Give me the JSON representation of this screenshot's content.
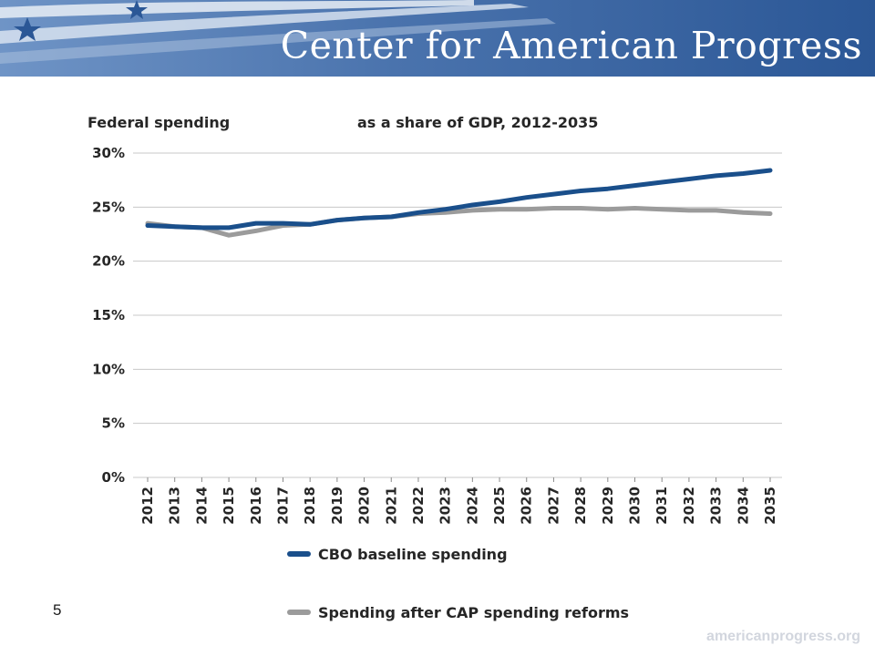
{
  "header": {
    "org_name": "Center for American Progress",
    "colors": {
      "banner_dark": "#2b5796",
      "banner_light": "#6f94c6",
      "stripe": "#e9eef6"
    }
  },
  "slide": {
    "number": "5",
    "url": "americanprogress.org"
  },
  "chart_data": {
    "type": "line",
    "title_left": "Federal spending",
    "title_right": "as a share of GDP, 2012-2035",
    "x": [
      "2012",
      "2013",
      "2014",
      "2015",
      "2016",
      "2017",
      "2018",
      "2019",
      "2020",
      "2021",
      "2022",
      "2023",
      "2024",
      "2025",
      "2026",
      "2027",
      "2028",
      "2029",
      "2030",
      "2031",
      "2032",
      "2033",
      "2034",
      "2035"
    ],
    "y_ticks": [
      "0%",
      "5%",
      "10%",
      "15%",
      "20%",
      "25%",
      "30%"
    ],
    "ylim": [
      0,
      30
    ],
    "grid": true,
    "legend_position": "bottom",
    "series": [
      {
        "name": "CBO baseline spending",
        "color": "#1a4f8b",
        "values": [
          23.3,
          23.2,
          23.1,
          23.1,
          23.5,
          23.5,
          23.4,
          23.8,
          24.0,
          24.1,
          24.5,
          24.8,
          25.2,
          25.5,
          25.9,
          26.2,
          26.5,
          26.7,
          27.0,
          27.3,
          27.6,
          27.9,
          28.1,
          28.4
        ]
      },
      {
        "name": "Spending after CAP spending reforms",
        "color": "#9b9b9b",
        "values": [
          23.5,
          23.2,
          23.1,
          22.4,
          22.8,
          23.3,
          23.4,
          23.8,
          24.0,
          24.1,
          24.4,
          24.5,
          24.7,
          24.8,
          24.8,
          24.9,
          24.9,
          24.8,
          24.9,
          24.8,
          24.7,
          24.7,
          24.5,
          24.4
        ]
      }
    ]
  }
}
